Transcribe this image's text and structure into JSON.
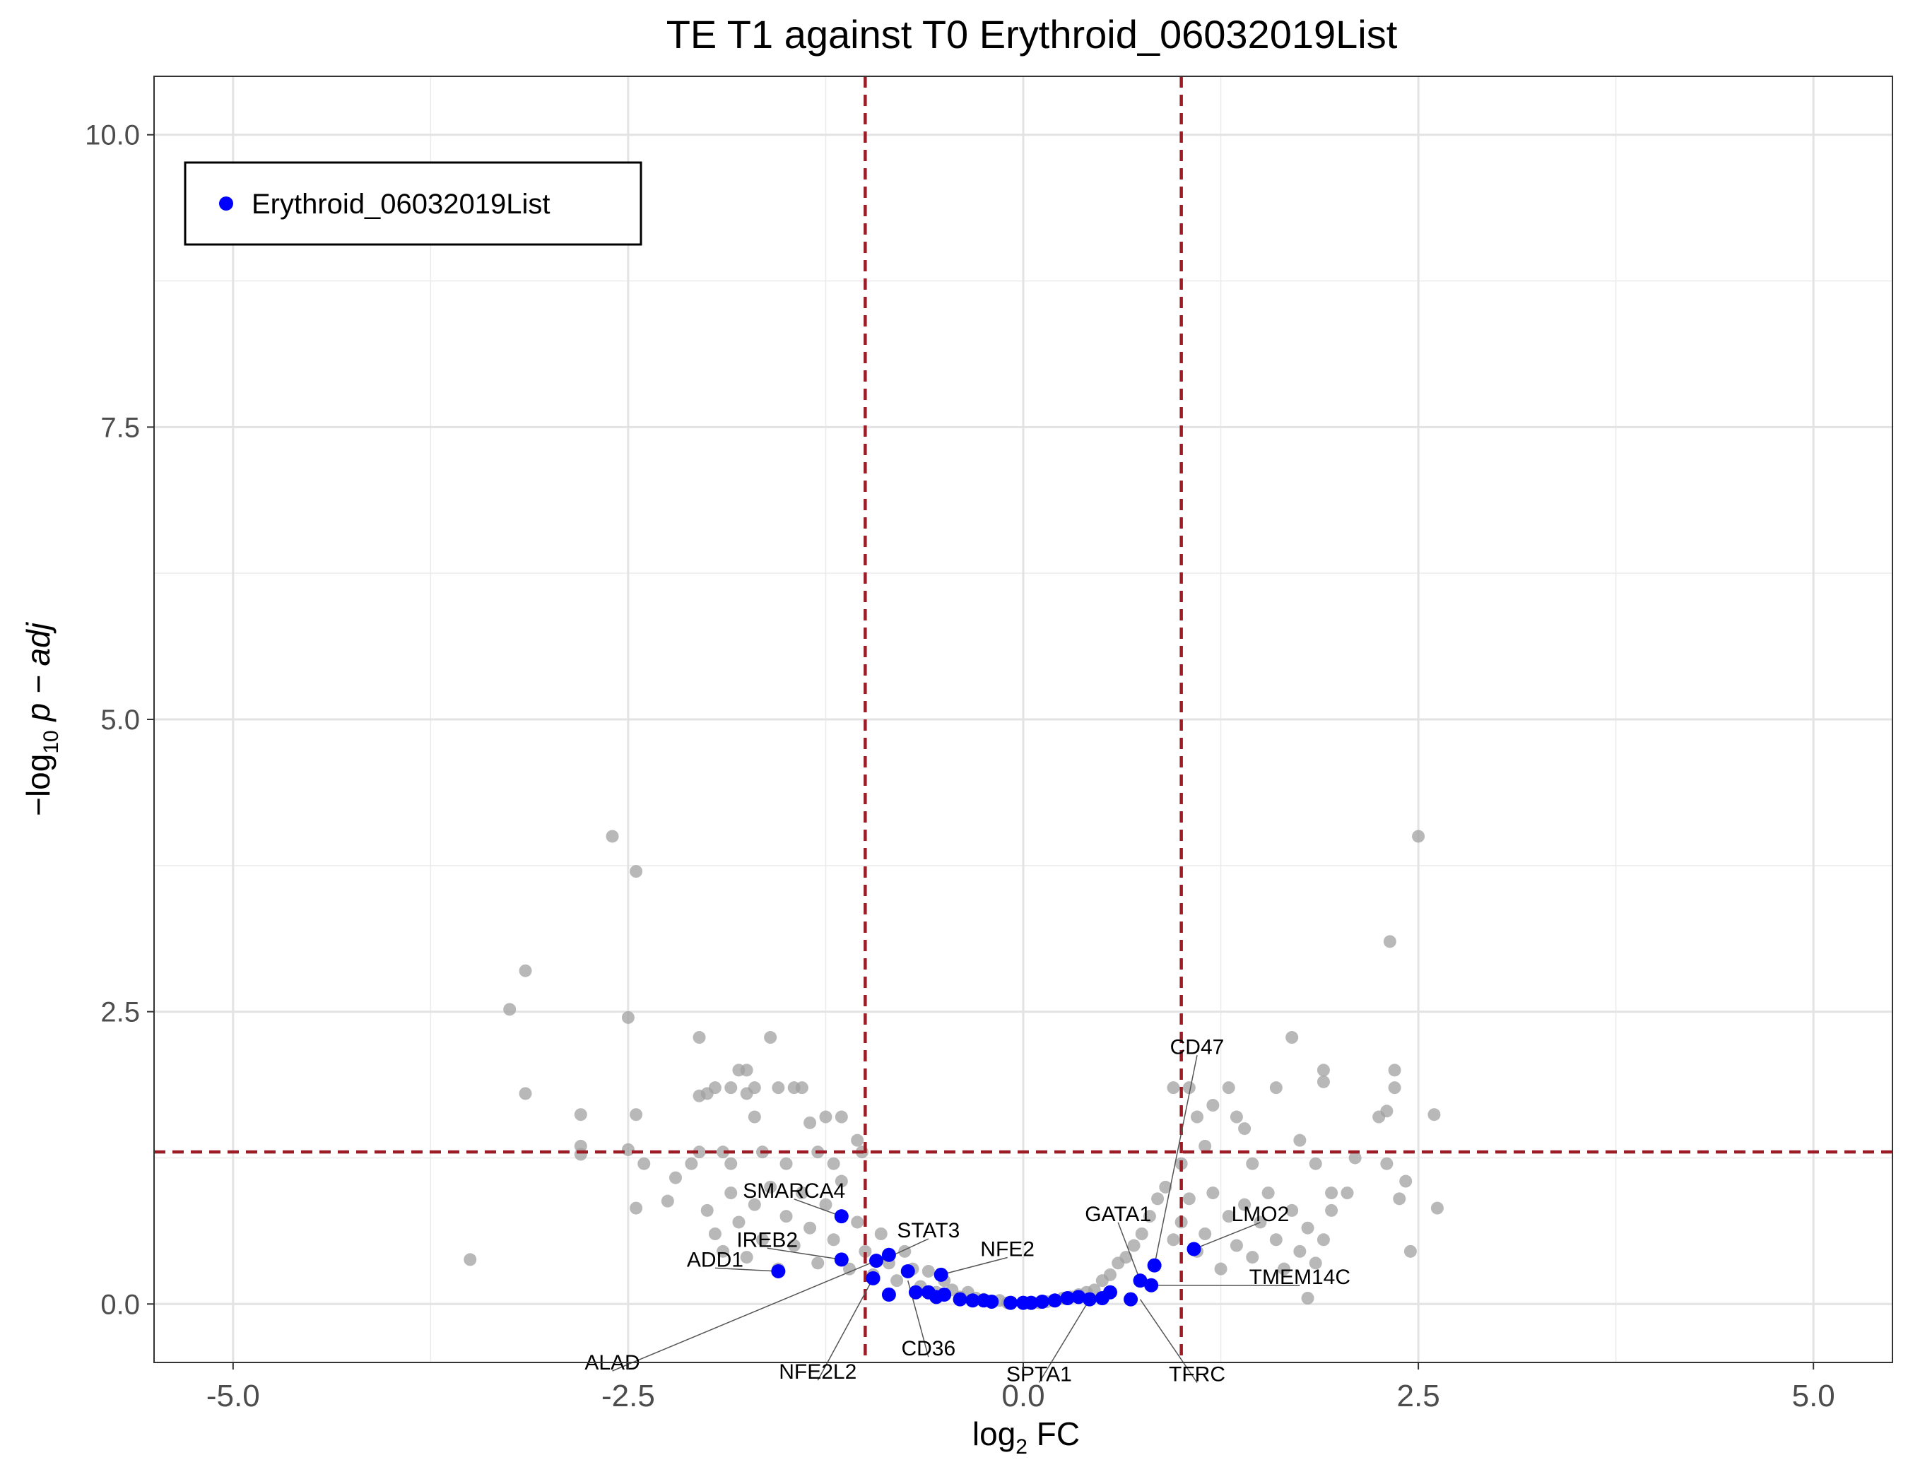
{
  "chart_data": {
    "type": "scatter",
    "title": "TE T1 against T0 Erythroid_06032019List",
    "xlabel": {
      "main": "log",
      "sub": "2",
      "suffix": " FC"
    },
    "ylabel": {
      "prefix": "−log",
      "sub": "10",
      "suffix": " p − adj"
    },
    "xlim": [
      -5.5,
      5.5
    ],
    "ylim": [
      -0.5,
      10.5
    ],
    "x_ticks": [
      -5.0,
      -2.5,
      0.0,
      2.5,
      5.0
    ],
    "x_tick_labels": [
      "-5.0",
      "-2.5",
      "0.0",
      "2.5",
      "5.0"
    ],
    "y_ticks": [
      0.0,
      2.5,
      5.0,
      7.5,
      10.0
    ],
    "y_tick_labels": [
      "0.0",
      "2.5",
      "5.0",
      "7.5",
      "10.0"
    ],
    "grid": true,
    "thresholds": {
      "x": [
        -1,
        1
      ],
      "y": 1.3,
      "color": "#9b1c24",
      "style": "dashed"
    },
    "legend": {
      "position": "top-left",
      "entries": [
        {
          "label": "Erythroid_06032019List",
          "color": "#0000ff"
        }
      ]
    },
    "colors": {
      "background_points": "#a0a0a0",
      "highlight_points": "#0000ff"
    },
    "background_points": [
      [
        -3.5,
        0.38
      ],
      [
        -3.25,
        2.52
      ],
      [
        -3.15,
        2.85
      ],
      [
        -3.15,
        1.8
      ],
      [
        -2.8,
        1.62
      ],
      [
        -2.8,
        1.35
      ],
      [
        -2.8,
        1.28
      ],
      [
        -2.6,
        4.0
      ],
      [
        -2.5,
        2.45
      ],
      [
        -2.5,
        1.32
      ],
      [
        -2.45,
        3.7
      ],
      [
        -2.45,
        1.62
      ],
      [
        -2.45,
        0.82
      ],
      [
        -2.4,
        1.2
      ],
      [
        -2.25,
        0.88
      ],
      [
        -2.2,
        1.08
      ],
      [
        -2.1,
        1.2
      ],
      [
        -2.05,
        2.28
      ],
      [
        -2.05,
        1.78
      ],
      [
        -2.05,
        1.3
      ],
      [
        -2.0,
        1.8
      ],
      [
        -1.95,
        1.85
      ],
      [
        -1.9,
        1.3
      ],
      [
        -1.85,
        1.2
      ],
      [
        -1.85,
        1.85
      ],
      [
        -1.8,
        2.0
      ],
      [
        -1.75,
        2.0
      ],
      [
        -1.75,
        1.8
      ],
      [
        -1.7,
        1.6
      ],
      [
        -1.7,
        1.85
      ],
      [
        -1.65,
        1.3
      ],
      [
        -1.6,
        2.28
      ],
      [
        -1.55,
        1.85
      ],
      [
        -1.5,
        1.2
      ],
      [
        -1.45,
        1.85
      ],
      [
        -1.4,
        1.85
      ],
      [
        -1.35,
        1.55
      ],
      [
        -1.3,
        1.3
      ],
      [
        -1.25,
        1.6
      ],
      [
        -1.2,
        1.2
      ],
      [
        -1.15,
        1.6
      ],
      [
        -1.05,
        1.4
      ],
      [
        -1.02,
        1.3
      ],
      [
        -2.0,
        0.8
      ],
      [
        -1.95,
        0.6
      ],
      [
        -1.9,
        0.45
      ],
      [
        -1.85,
        0.95
      ],
      [
        -1.8,
        0.7
      ],
      [
        -1.75,
        0.4
      ],
      [
        -1.7,
        0.85
      ],
      [
        -1.65,
        0.55
      ],
      [
        -1.6,
        1.0
      ],
      [
        -1.55,
        0.3
      ],
      [
        -1.5,
        0.75
      ],
      [
        -1.45,
        0.5
      ],
      [
        -1.4,
        0.95
      ],
      [
        -1.35,
        0.65
      ],
      [
        -1.3,
        0.35
      ],
      [
        -1.25,
        0.85
      ],
      [
        -1.2,
        0.55
      ],
      [
        -1.15,
        1.05
      ],
      [
        -1.1,
        0.3
      ],
      [
        -1.05,
        0.7
      ],
      [
        -1.0,
        0.45
      ],
      [
        -0.95,
        0.25
      ],
      [
        -0.9,
        0.6
      ],
      [
        -0.85,
        0.35
      ],
      [
        -0.8,
        0.2
      ],
      [
        -0.75,
        0.45
      ],
      [
        -0.7,
        0.3
      ],
      [
        -0.65,
        0.15
      ],
      [
        -0.6,
        0.28
      ],
      [
        -0.55,
        0.1
      ],
      [
        -0.5,
        0.2
      ],
      [
        -0.45,
        0.12
      ],
      [
        -0.4,
        0.06
      ],
      [
        -0.35,
        0.1
      ],
      [
        -0.3,
        0.05
      ],
      [
        -0.25,
        0.04
      ],
      [
        -0.2,
        0.02
      ],
      [
        -0.15,
        0.03
      ],
      [
        -0.1,
        0.01
      ],
      [
        0.1,
        0.01
      ],
      [
        0.15,
        0.02
      ],
      [
        0.2,
        0.03
      ],
      [
        0.25,
        0.05
      ],
      [
        0.3,
        0.06
      ],
      [
        0.35,
        0.08
      ],
      [
        0.4,
        0.1
      ],
      [
        0.45,
        0.12
      ],
      [
        0.5,
        0.2
      ],
      [
        0.55,
        0.25
      ],
      [
        0.6,
        0.35
      ],
      [
        0.65,
        0.4
      ],
      [
        0.7,
        0.5
      ],
      [
        0.75,
        0.6
      ],
      [
        0.8,
        0.75
      ],
      [
        0.85,
        0.9
      ],
      [
        0.9,
        1.0
      ],
      [
        0.95,
        0.55
      ],
      [
        1.0,
        0.7
      ],
      [
        1.05,
        0.9
      ],
      [
        1.1,
        0.45
      ],
      [
        1.15,
        0.6
      ],
      [
        1.2,
        0.95
      ],
      [
        1.25,
        0.3
      ],
      [
        1.3,
        0.75
      ],
      [
        1.35,
        0.5
      ],
      [
        1.4,
        0.85
      ],
      [
        1.45,
        0.4
      ],
      [
        1.5,
        0.7
      ],
      [
        1.55,
        0.95
      ],
      [
        1.6,
        0.55
      ],
      [
        1.65,
        0.3
      ],
      [
        1.7,
        0.8
      ],
      [
        1.75,
        0.45
      ],
      [
        1.8,
        0.65
      ],
      [
        1.85,
        0.35
      ],
      [
        1.9,
        0.55
      ],
      [
        1.95,
        0.95
      ],
      [
        0.95,
        1.85
      ],
      [
        1.0,
        1.2
      ],
      [
        1.05,
        1.85
      ],
      [
        1.1,
        1.6
      ],
      [
        1.15,
        1.35
      ],
      [
        1.2,
        1.7
      ],
      [
        1.3,
        1.85
      ],
      [
        1.35,
        1.6
      ],
      [
        1.4,
        1.5
      ],
      [
        1.45,
        1.2
      ],
      [
        1.6,
        1.85
      ],
      [
        1.7,
        2.28
      ],
      [
        1.75,
        1.4
      ],
      [
        1.8,
        0.05
      ],
      [
        1.85,
        1.2
      ],
      [
        1.9,
        1.9
      ],
      [
        1.9,
        2.0
      ],
      [
        1.95,
        0.8
      ],
      [
        2.05,
        0.95
      ],
      [
        2.1,
        1.25
      ],
      [
        2.25,
        1.6
      ],
      [
        2.3,
        1.65
      ],
      [
        2.3,
        1.2
      ],
      [
        2.32,
        3.1
      ],
      [
        2.35,
        2.0
      ],
      [
        2.35,
        1.85
      ],
      [
        2.38,
        0.9
      ],
      [
        2.42,
        1.05
      ],
      [
        2.45,
        0.45
      ],
      [
        2.5,
        4.0
      ],
      [
        2.6,
        1.62
      ],
      [
        2.62,
        0.82
      ]
    ],
    "highlight_points": [
      {
        "x": -1.55,
        "y": 0.28
      },
      {
        "x": -1.15,
        "y": 0.75
      },
      {
        "x": -1.15,
        "y": 0.38
      },
      {
        "x": -0.95,
        "y": 0.22
      },
      {
        "x": -0.93,
        "y": 0.37
      },
      {
        "x": -0.85,
        "y": 0.42
      },
      {
        "x": -0.85,
        "y": 0.08
      },
      {
        "x": -0.73,
        "y": 0.28
      },
      {
        "x": -0.68,
        "y": 0.1
      },
      {
        "x": -0.6,
        "y": 0.1
      },
      {
        "x": -0.55,
        "y": 0.06
      },
      {
        "x": -0.52,
        "y": 0.25
      },
      {
        "x": -0.5,
        "y": 0.08
      },
      {
        "x": -0.4,
        "y": 0.04
      },
      {
        "x": -0.32,
        "y": 0.03
      },
      {
        "x": -0.25,
        "y": 0.03
      },
      {
        "x": -0.2,
        "y": 0.02
      },
      {
        "x": -0.08,
        "y": 0.01
      },
      {
        "x": 0.0,
        "y": 0.01
      },
      {
        "x": 0.05,
        "y": 0.01
      },
      {
        "x": 0.12,
        "y": 0.02
      },
      {
        "x": 0.2,
        "y": 0.03
      },
      {
        "x": 0.28,
        "y": 0.05
      },
      {
        "x": 0.35,
        "y": 0.06
      },
      {
        "x": 0.42,
        "y": 0.04
      },
      {
        "x": 0.5,
        "y": 0.05
      },
      {
        "x": 0.55,
        "y": 0.1
      },
      {
        "x": 0.68,
        "y": 0.04
      },
      {
        "x": 0.74,
        "y": 0.2
      },
      {
        "x": 0.81,
        "y": 0.16
      },
      {
        "x": 0.83,
        "y": 0.33
      },
      {
        "x": 1.08,
        "y": 0.47
      }
    ],
    "gene_labels": [
      {
        "text": "SMARCA4",
        "x": -1.45,
        "y": 0.97,
        "anchor": "middle",
        "px": -1.15,
        "py": 0.75
      },
      {
        "text": "IREB2",
        "x": -1.62,
        "y": 0.55,
        "anchor": "middle",
        "px": -1.15,
        "py": 0.38
      },
      {
        "text": "STAT3",
        "x": -0.6,
        "y": 0.63,
        "anchor": "middle",
        "px": -0.9,
        "py": 0.37
      },
      {
        "text": "ADD1",
        "x": -1.95,
        "y": 0.38,
        "anchor": "middle",
        "px": -1.55,
        "py": 0.28
      },
      {
        "text": "ALAD",
        "x": -2.6,
        "y": -0.5,
        "anchor": "middle",
        "px": -0.93,
        "py": 0.37
      },
      {
        "text": "NFE2",
        "x": -0.1,
        "y": 0.47,
        "anchor": "middle",
        "px": -0.52,
        "py": 0.25
      },
      {
        "text": "NFE2L2",
        "x": -1.3,
        "y": -0.58,
        "anchor": "middle",
        "px": -0.95,
        "py": 0.22
      },
      {
        "text": "CD36",
        "x": -0.6,
        "y": -0.38,
        "anchor": "middle",
        "px": -0.73,
        "py": 0.2
      },
      {
        "text": "CD47",
        "x": 1.1,
        "y": 2.2,
        "anchor": "middle",
        "px": 0.83,
        "py": 0.33
      },
      {
        "text": "GATA1",
        "x": 0.6,
        "y": 0.77,
        "anchor": "middle",
        "px": 0.74,
        "py": 0.2
      },
      {
        "text": "LMO2",
        "x": 1.5,
        "y": 0.77,
        "anchor": "middle",
        "px": 1.08,
        "py": 0.47
      },
      {
        "text": "TMEM14C",
        "x": 1.75,
        "y": 0.23,
        "anchor": "middle",
        "px": 0.81,
        "py": 0.16
      },
      {
        "text": "SPTA1",
        "x": 0.1,
        "y": -0.6,
        "anchor": "middle",
        "px": 0.42,
        "py": 0.04
      },
      {
        "text": "TFRC",
        "x": 1.1,
        "y": -0.6,
        "anchor": "middle",
        "px": 0.74,
        "py": 0.04
      }
    ]
  }
}
